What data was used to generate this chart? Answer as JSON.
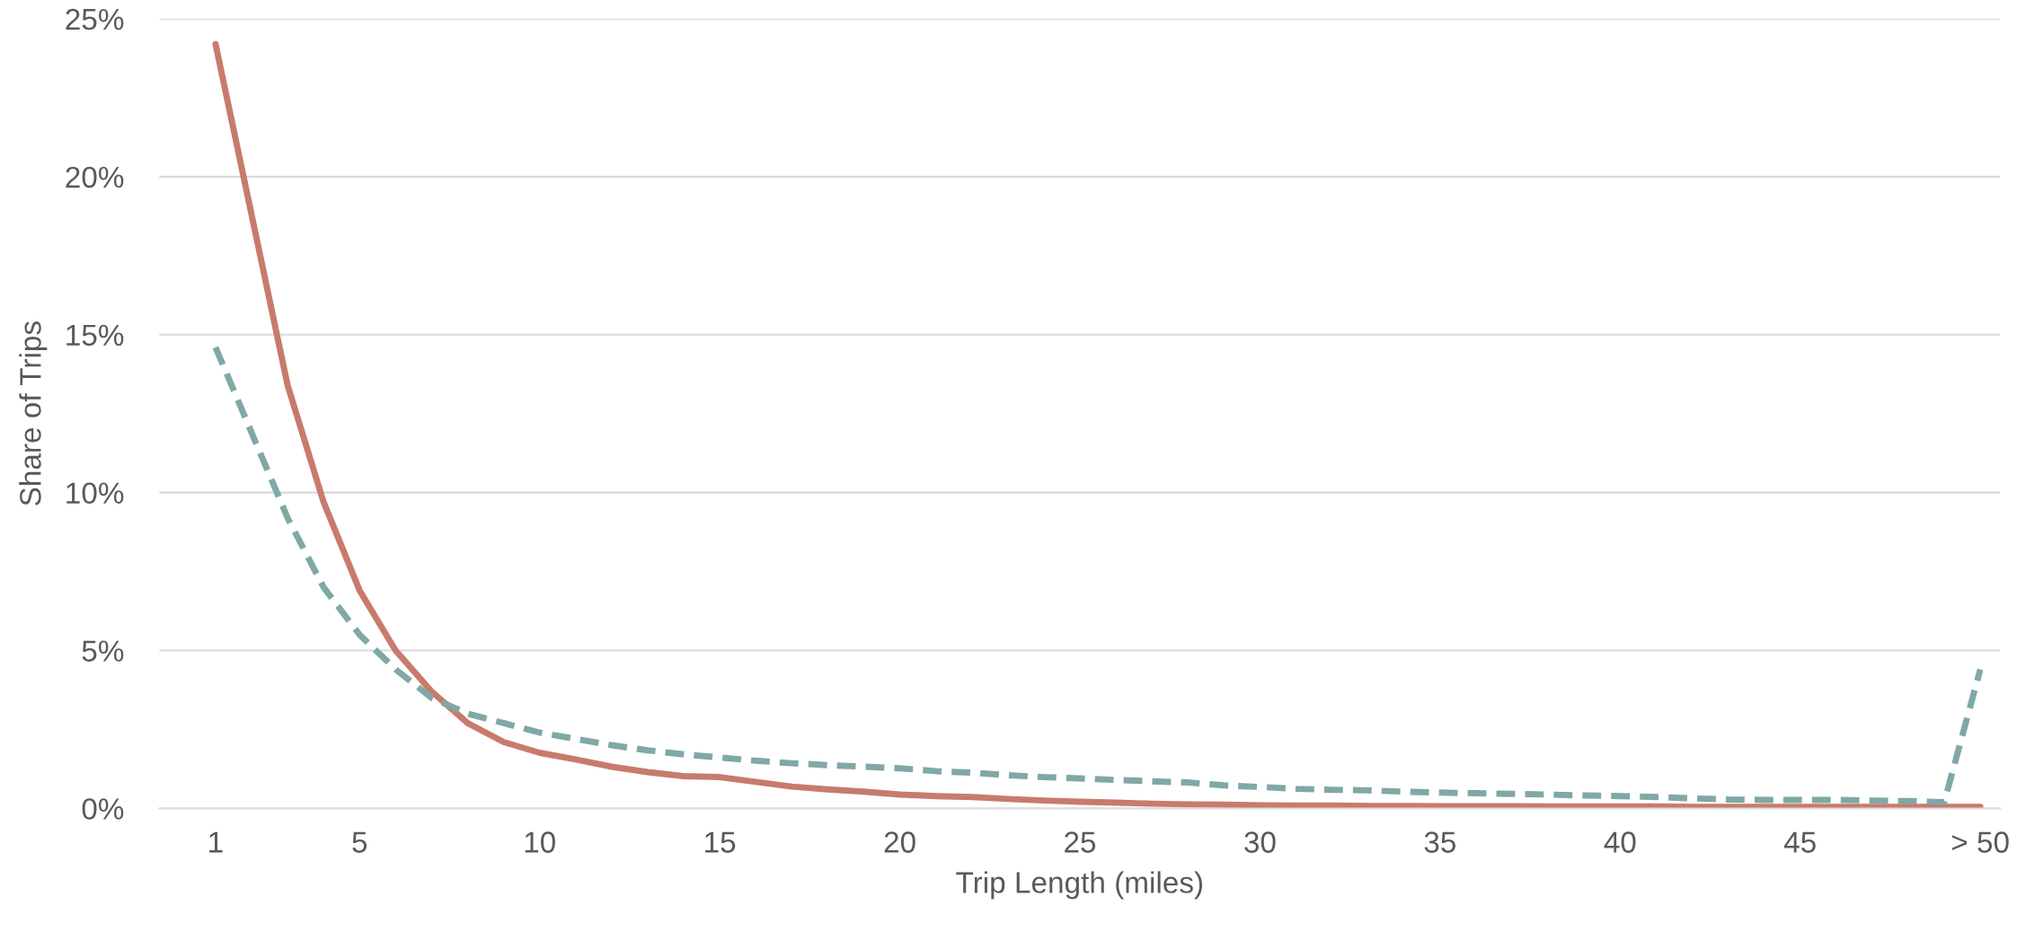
{
  "chart_data": {
    "type": "line",
    "xlabel": "Trip Length (miles)",
    "ylabel": "Share of Trips",
    "categories": [
      "1",
      null,
      null,
      null,
      "5",
      null,
      null,
      null,
      null,
      "10",
      null,
      null,
      null,
      null,
      "15",
      null,
      null,
      null,
      null,
      "20",
      null,
      null,
      null,
      null,
      "25",
      null,
      null,
      null,
      null,
      "30",
      null,
      null,
      null,
      null,
      "35",
      null,
      null,
      null,
      null,
      "40",
      null,
      null,
      null,
      null,
      "45",
      null,
      null,
      null,
      null,
      "> 50"
    ],
    "series": [
      {
        "color": "#c87b6c",
        "line_style": "solid",
        "values": [
          24.2,
          18.8,
          13.4,
          9.7,
          6.9,
          5.0,
          3.7,
          2.7,
          2.1,
          1.76,
          1.55,
          1.32,
          1.15,
          1.02,
          0.99,
          0.84,
          0.69,
          0.6,
          0.53,
          0.44,
          0.39,
          0.36,
          0.3,
          0.25,
          0.21,
          0.18,
          0.15,
          0.13,
          0.12,
          0.1,
          0.09,
          0.09,
          0.08,
          0.08,
          0.07,
          0.07,
          0.07,
          0.06,
          0.06,
          0.06,
          0.06,
          0.05,
          0.05,
          0.05,
          0.05,
          0.05,
          0.05,
          0.05,
          0.05,
          0.05
        ]
      },
      {
        "color": "#7fa8a6",
        "line_style": "dashed",
        "values": [
          14.6,
          11.9,
          9.2,
          7.0,
          5.5,
          4.4,
          3.5,
          3.0,
          2.7,
          2.4,
          2.2,
          2.0,
          1.84,
          1.71,
          1.61,
          1.51,
          1.43,
          1.37,
          1.32,
          1.27,
          1.18,
          1.13,
          1.05,
          0.99,
          0.95,
          0.9,
          0.86,
          0.82,
          0.73,
          0.68,
          0.62,
          0.59,
          0.57,
          0.53,
          0.5,
          0.48,
          0.46,
          0.44,
          0.41,
          0.39,
          0.36,
          0.32,
          0.28,
          0.27,
          0.27,
          0.27,
          0.25,
          0.23,
          0.2,
          4.4
        ]
      }
    ],
    "ylim": [
      0,
      25
    ],
    "yticks": [
      {
        "value": 0,
        "label": "0%"
      },
      {
        "value": 5,
        "label": "5%"
      },
      {
        "value": 10,
        "label": "10%"
      },
      {
        "value": 15,
        "label": "15%"
      },
      {
        "value": 20,
        "label": "20%"
      },
      {
        "value": 25,
        "label": "25%"
      }
    ],
    "grid": "y",
    "legend": false
  }
}
